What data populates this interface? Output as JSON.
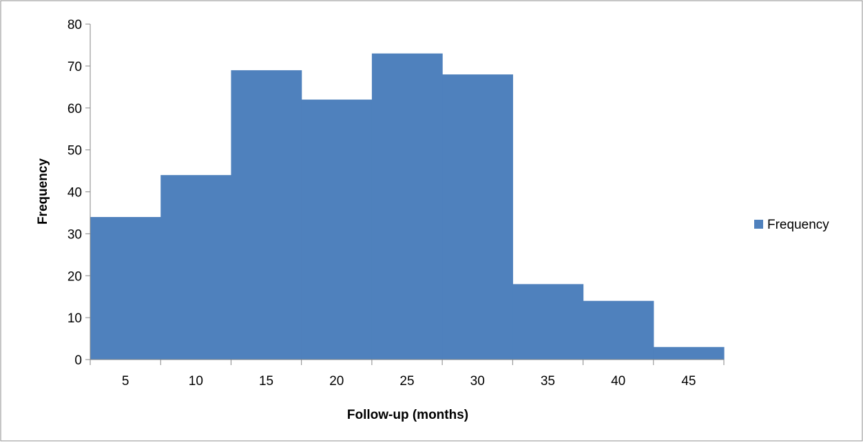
{
  "chart_data": {
    "type": "bar",
    "title": "",
    "xlabel": "Follow-up (months)",
    "ylabel": "Frequency",
    "categories": [
      "5",
      "10",
      "15",
      "20",
      "25",
      "30",
      "35",
      "40",
      "45"
    ],
    "series": [
      {
        "name": "Frequency",
        "values": [
          34,
          44,
          69,
          62,
          73,
          68,
          18,
          14,
          3
        ],
        "color": "#4f81bd"
      }
    ],
    "ylim": [
      0,
      80
    ],
    "yticks": [
      0,
      10,
      20,
      30,
      40,
      50,
      60,
      70,
      80
    ],
    "grid": false,
    "legend": "right"
  }
}
